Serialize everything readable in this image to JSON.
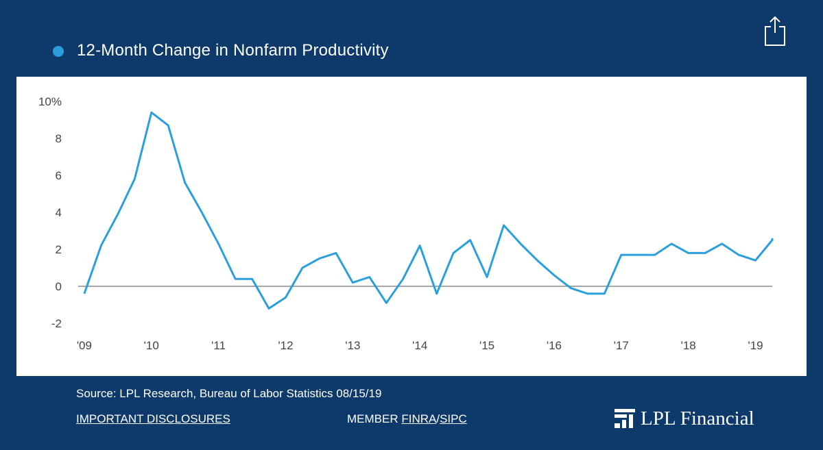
{
  "header": {
    "title": "12-Month Change in Nonfarm Productivity",
    "share_icon": "share-icon",
    "series_color": "#2a9fdc"
  },
  "footer": {
    "source": "Source: LPL Research, Bureau of Labor Statistics  08/15/19",
    "disclosures": "IMPORTANT DISCLOSURES",
    "member_prefix": "MEMBER ",
    "finra": "FINRA",
    "slash": "/",
    "sipc": "SIPC",
    "logo_text": "LPL Financial",
    "logo_icon": "lpl-logo-icon"
  },
  "chart_data": {
    "type": "line",
    "title": "12-Month Change in Nonfarm Productivity",
    "ylim": [
      -2,
      10
    ],
    "y_ticks": [
      {
        "value": 10,
        "label": "10%"
      },
      {
        "value": 8,
        "label": "8"
      },
      {
        "value": 6,
        "label": "6"
      },
      {
        "value": 4,
        "label": "4"
      },
      {
        "value": 2,
        "label": "2"
      },
      {
        "value": 0,
        "label": "0"
      },
      {
        "value": -2,
        "label": "-2"
      }
    ],
    "x_ticks": [
      {
        "value": 2009.0,
        "label": "'09"
      },
      {
        "value": 2010.0,
        "label": "'10"
      },
      {
        "value": 2011.0,
        "label": "'11"
      },
      {
        "value": 2012.0,
        "label": "'12"
      },
      {
        "value": 2013.0,
        "label": "'13"
      },
      {
        "value": 2014.0,
        "label": "'14"
      },
      {
        "value": 2015.0,
        "label": "'15"
      },
      {
        "value": 2016.0,
        "label": "'16"
      },
      {
        "value": 2017.0,
        "label": "'17"
      },
      {
        "value": 2018.0,
        "label": "'18"
      },
      {
        "value": 2019.0,
        "label": "'19"
      }
    ],
    "xlim": [
      2008.95,
      2019.25
    ],
    "zero_line": true,
    "series": [
      {
        "color": "#2a9fdc",
        "points": [
          [
            2009.0,
            -0.4
          ],
          [
            2009.25,
            2.2
          ],
          [
            2009.5,
            3.9
          ],
          [
            2009.75,
            5.8
          ],
          [
            2010.0,
            9.4
          ],
          [
            2010.25,
            8.7
          ],
          [
            2010.5,
            5.6
          ],
          [
            2010.75,
            4.0
          ],
          [
            2011.0,
            2.3
          ],
          [
            2011.25,
            0.4
          ],
          [
            2011.5,
            0.4
          ],
          [
            2011.75,
            -1.2
          ],
          [
            2012.0,
            -0.6
          ],
          [
            2012.25,
            1.0
          ],
          [
            2012.5,
            1.5
          ],
          [
            2012.75,
            1.8
          ],
          [
            2013.0,
            0.2
          ],
          [
            2013.25,
            0.5
          ],
          [
            2013.5,
            -0.9
          ],
          [
            2013.75,
            0.4
          ],
          [
            2014.0,
            2.2
          ],
          [
            2014.25,
            -0.4
          ],
          [
            2014.5,
            1.8
          ],
          [
            2014.75,
            2.5
          ],
          [
            2015.0,
            0.5
          ],
          [
            2015.25,
            3.3
          ],
          [
            2015.5,
            2.3
          ],
          [
            2015.75,
            1.4
          ],
          [
            2016.0,
            0.6
          ],
          [
            2016.25,
            -0.1
          ],
          [
            2016.5,
            -0.4
          ],
          [
            2016.75,
            -0.4
          ],
          [
            2017.0,
            1.7
          ],
          [
            2017.25,
            1.7
          ],
          [
            2017.5,
            1.7
          ],
          [
            2017.75,
            2.3
          ],
          [
            2018.0,
            1.8
          ],
          [
            2018.25,
            1.8
          ],
          [
            2018.5,
            2.3
          ],
          [
            2018.75,
            1.7
          ],
          [
            2019.0,
            1.4
          ],
          [
            2019.25,
            2.5
          ],
          [
            2019.5,
            2.6
          ]
        ]
      }
    ]
  }
}
